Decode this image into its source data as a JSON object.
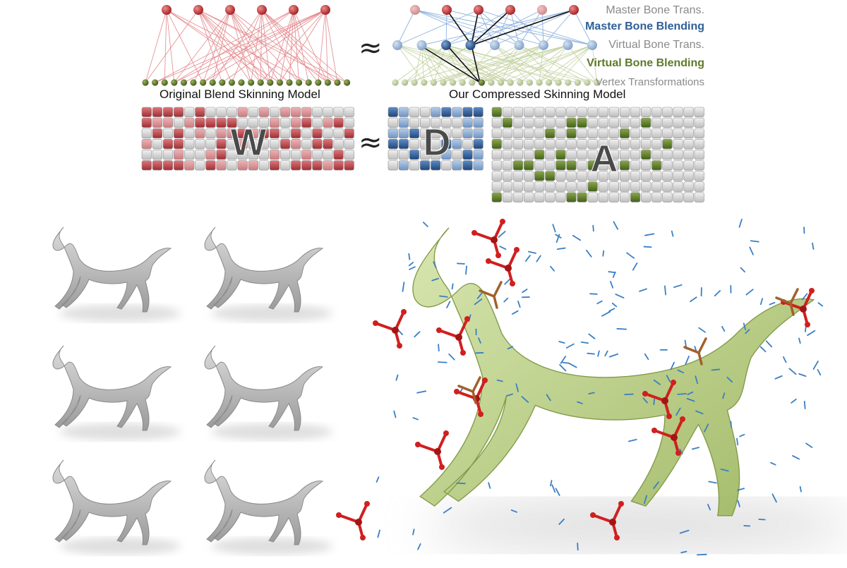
{
  "legend": {
    "master_bone_trans": "Master Bone Trans.",
    "master_bone_blending": "Master Bone Blending",
    "virtual_bone_trans": "Virtual Bone Trans.",
    "virtual_bone_blending": "Virtual Bone Blending",
    "vertex_transformations": "Vertex Transformations"
  },
  "captions": {
    "original": "Original Blend Skinning Model",
    "compressed": "Our Compressed Skinning Model"
  },
  "symbols": {
    "approx": "≈"
  },
  "matrices": {
    "w": "W",
    "d": "D",
    "a": "A"
  },
  "colors": {
    "red": "#c0444a",
    "red_light": "#e6a4a8",
    "blue": "#2f5f97",
    "blue_light": "#9cbbe0",
    "green": "#5e7a2a",
    "green_light": "#b8c88f",
    "grey_cell": "#d7d7d7",
    "mesh": "#cfe0a6",
    "horse": "#c4c4c4",
    "frame_red": "#d11f1f"
  },
  "icons": {
    "frame_marker": "red-arrow-frame-icon",
    "vertex_marker": "blue-arrow-icon"
  }
}
